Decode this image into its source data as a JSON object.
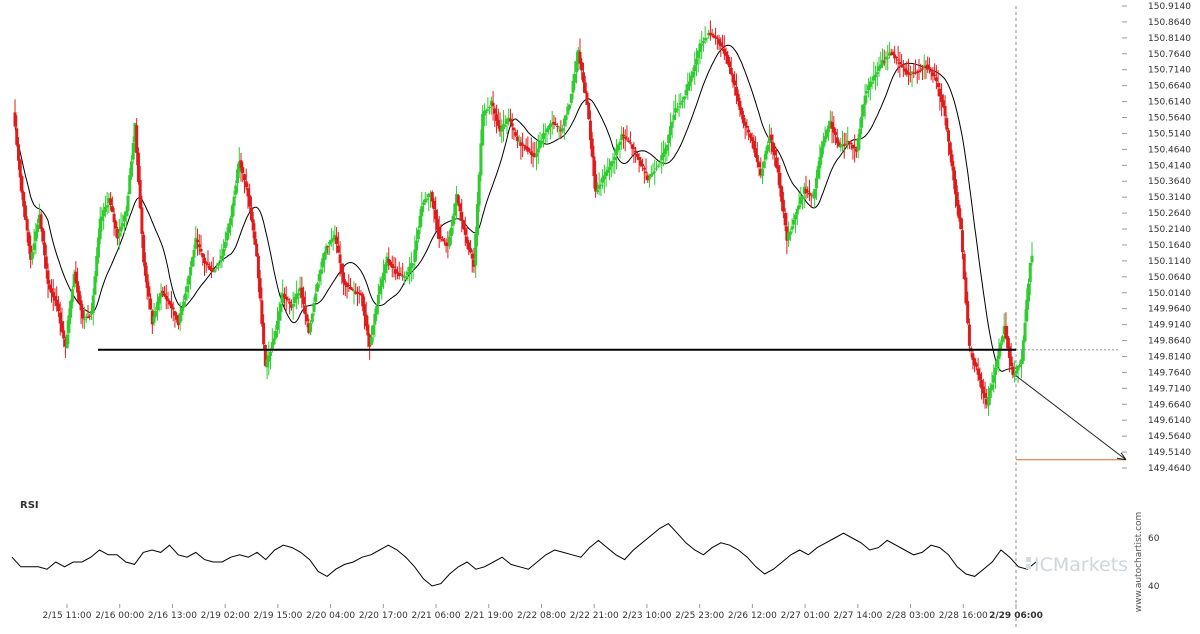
{
  "chart_data": {
    "type": "candlestick",
    "instrument_note": "",
    "y_ticks": [
      "150.9140",
      "150.8640",
      "150.8140",
      "150.7640",
      "150.7140",
      "150.6640",
      "150.6140",
      "150.5640",
      "150.5140",
      "150.4640",
      "150.4140",
      "150.3640",
      "150.3140",
      "150.2640",
      "150.2140",
      "150.1640",
      "150.1140",
      "150.0640",
      "150.0140",
      "149.9640",
      "149.9140",
      "149.8640",
      "149.8140",
      "149.7640",
      "149.7140",
      "149.6640",
      "149.6140",
      "149.5640",
      "149.5140",
      "149.4640"
    ],
    "ylim": [
      149.464,
      150.914
    ],
    "x_ticks": [
      "2/15 11:00",
      "2/16 00:00",
      "2/16 13:00",
      "2/19 02:00",
      "2/19 15:00",
      "2/20 04:00",
      "2/20 17:00",
      "2/21 06:00",
      "2/21 19:00",
      "2/22 08:00",
      "2/22 21:00",
      "2/23 10:00",
      "2/25 23:00",
      "2/26 12:00",
      "2/27 01:00",
      "2/27 14:00",
      "2/28 03:00",
      "2/28 16:00",
      "2/29 06:00"
    ],
    "x_tick_bold": "2/29 06:00",
    "ohlc_path": [
      150.58,
      150.33,
      150.12,
      150.26,
      150.04,
      149.98,
      149.84,
      150.08,
      149.93,
      149.95,
      150.24,
      150.31,
      150.19,
      150.27,
      150.54,
      150.11,
      149.92,
      150.02,
      149.98,
      149.92,
      150.04,
      150.18,
      150.11,
      150.08,
      150.13,
      150.25,
      150.43,
      150.32,
      150.13,
      149.78,
      149.87,
      150.01,
      149.97,
      150.03,
      149.89,
      150.05,
      150.16,
      150.19,
      150.05,
      150.02,
      150.01,
      149.85,
      150.01,
      150.12,
      150.08,
      150.06,
      150.11,
      150.29,
      150.33,
      150.19,
      150.16,
      150.32,
      150.19,
      150.1,
      150.57,
      150.61,
      150.52,
      150.56,
      150.49,
      150.47,
      150.44,
      150.51,
      150.55,
      150.52,
      150.61,
      150.77,
      150.61,
      150.33,
      150.38,
      150.43,
      150.51,
      150.48,
      150.43,
      150.37,
      150.41,
      150.46,
      150.58,
      150.62,
      150.69,
      150.79,
      150.83,
      150.81,
      150.76,
      150.66,
      150.55,
      150.49,
      150.38,
      150.51,
      150.39,
      150.18,
      150.26,
      150.34,
      150.31,
      150.47,
      150.55,
      150.47,
      150.49,
      150.46,
      150.64,
      150.69,
      150.74,
      150.77,
      150.73,
      150.7,
      150.71,
      150.73,
      150.69,
      150.6,
      150.41,
      150.21,
      149.84,
      149.76,
      149.66,
      149.78,
      149.91,
      149.75,
      149.8,
      150.11
    ],
    "support_level": 149.835,
    "target_level": 149.49,
    "current_level": 149.835,
    "rsi": {
      "title": "RSI",
      "ticks": [
        "60",
        "40"
      ],
      "values": [
        52,
        48,
        48,
        48,
        47,
        50,
        48,
        50,
        50,
        52,
        55,
        53,
        53,
        50,
        49,
        54,
        55,
        54,
        57,
        53,
        52,
        54,
        51,
        50,
        50,
        52,
        53,
        52,
        54,
        51,
        55,
        57,
        56,
        54,
        51,
        46,
        44,
        47,
        49,
        50,
        52,
        53,
        55,
        57,
        55,
        52,
        48,
        43,
        40,
        41,
        45,
        48,
        50,
        47,
        48,
        50,
        52,
        49,
        48,
        47,
        50,
        53,
        55,
        54,
        53,
        52,
        56,
        59,
        56,
        53,
        51,
        55,
        58,
        61,
        64,
        66,
        62,
        58,
        55,
        53,
        56,
        58,
        57,
        55,
        52,
        48,
        45,
        47,
        50,
        53,
        55,
        53,
        56,
        58,
        60,
        62,
        60,
        58,
        55,
        56,
        59,
        57,
        55,
        53,
        54,
        57,
        56,
        53,
        48,
        45,
        44,
        47,
        50,
        55,
        52,
        48,
        47,
        50
      ],
      "ylim": [
        35,
        70
      ]
    },
    "logo": "ICMarkets",
    "watermark": "www.autochartist.com",
    "colors": {
      "bull": "#2ecc2e",
      "bear": "#e01b1b",
      "ma": "#000000",
      "rsi": "#000000",
      "support": "#000000",
      "target": "#d96a2a",
      "projection": "#222222",
      "grid": "#dddddd",
      "axis_text": "#333333"
    }
  }
}
